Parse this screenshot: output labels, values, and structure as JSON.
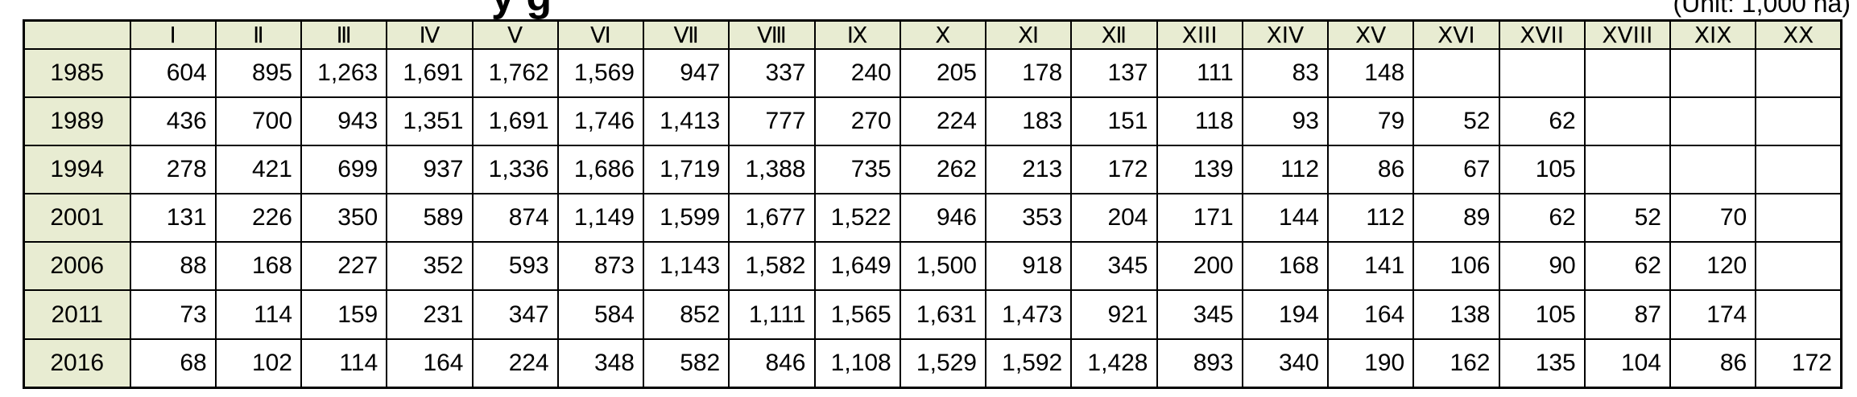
{
  "title_fragment": "y g",
  "unit_note": "(Unit: 1,000 ha)",
  "chart_data": {
    "type": "table",
    "columns": [
      "",
      "Ⅰ",
      "Ⅱ",
      "Ⅲ",
      "Ⅳ",
      "Ⅴ",
      "Ⅵ",
      "Ⅶ",
      "Ⅷ",
      "Ⅸ",
      "Ⅹ",
      "Ⅺ",
      "Ⅻ",
      "XIII",
      "XIV",
      "XV",
      "XVI",
      "XVII",
      "XVIII",
      "XIX",
      "XX"
    ],
    "rows": [
      {
        "year": "1985",
        "cells": [
          "604",
          "895",
          "1,263",
          "1,691",
          "1,762",
          "1,569",
          "947",
          "337",
          "240",
          "205",
          "178",
          "137",
          "111",
          "83",
          "148",
          "",
          "",
          "",
          "",
          ""
        ]
      },
      {
        "year": "1989",
        "cells": [
          "436",
          "700",
          "943",
          "1,351",
          "1,691",
          "1,746",
          "1,413",
          "777",
          "270",
          "224",
          "183",
          "151",
          "118",
          "93",
          "79",
          "52",
          "62",
          "",
          "",
          ""
        ]
      },
      {
        "year": "1994",
        "cells": [
          "278",
          "421",
          "699",
          "937",
          "1,336",
          "1,686",
          "1,719",
          "1,388",
          "735",
          "262",
          "213",
          "172",
          "139",
          "112",
          "86",
          "67",
          "105",
          "",
          "",
          ""
        ]
      },
      {
        "year": "2001",
        "cells": [
          "131",
          "226",
          "350",
          "589",
          "874",
          "1,149",
          "1,599",
          "1,677",
          "1,522",
          "946",
          "353",
          "204",
          "171",
          "144",
          "112",
          "89",
          "62",
          "52",
          "70",
          ""
        ]
      },
      {
        "year": "2006",
        "cells": [
          "88",
          "168",
          "227",
          "352",
          "593",
          "873",
          "1,143",
          "1,582",
          "1,649",
          "1,500",
          "918",
          "345",
          "200",
          "168",
          "141",
          "106",
          "90",
          "62",
          "120",
          ""
        ]
      },
      {
        "year": "2011",
        "cells": [
          "73",
          "114",
          "159",
          "231",
          "347",
          "584",
          "852",
          "1,111",
          "1,565",
          "1,631",
          "1,473",
          "921",
          "345",
          "194",
          "164",
          "138",
          "105",
          "87",
          "174",
          ""
        ]
      },
      {
        "year": "2016",
        "cells": [
          "68",
          "102",
          "114",
          "164",
          "224",
          "348",
          "582",
          "846",
          "1,108",
          "1,529",
          "1,592",
          "1,428",
          "893",
          "340",
          "190",
          "162",
          "135",
          "104",
          "86",
          "172"
        ]
      }
    ]
  }
}
